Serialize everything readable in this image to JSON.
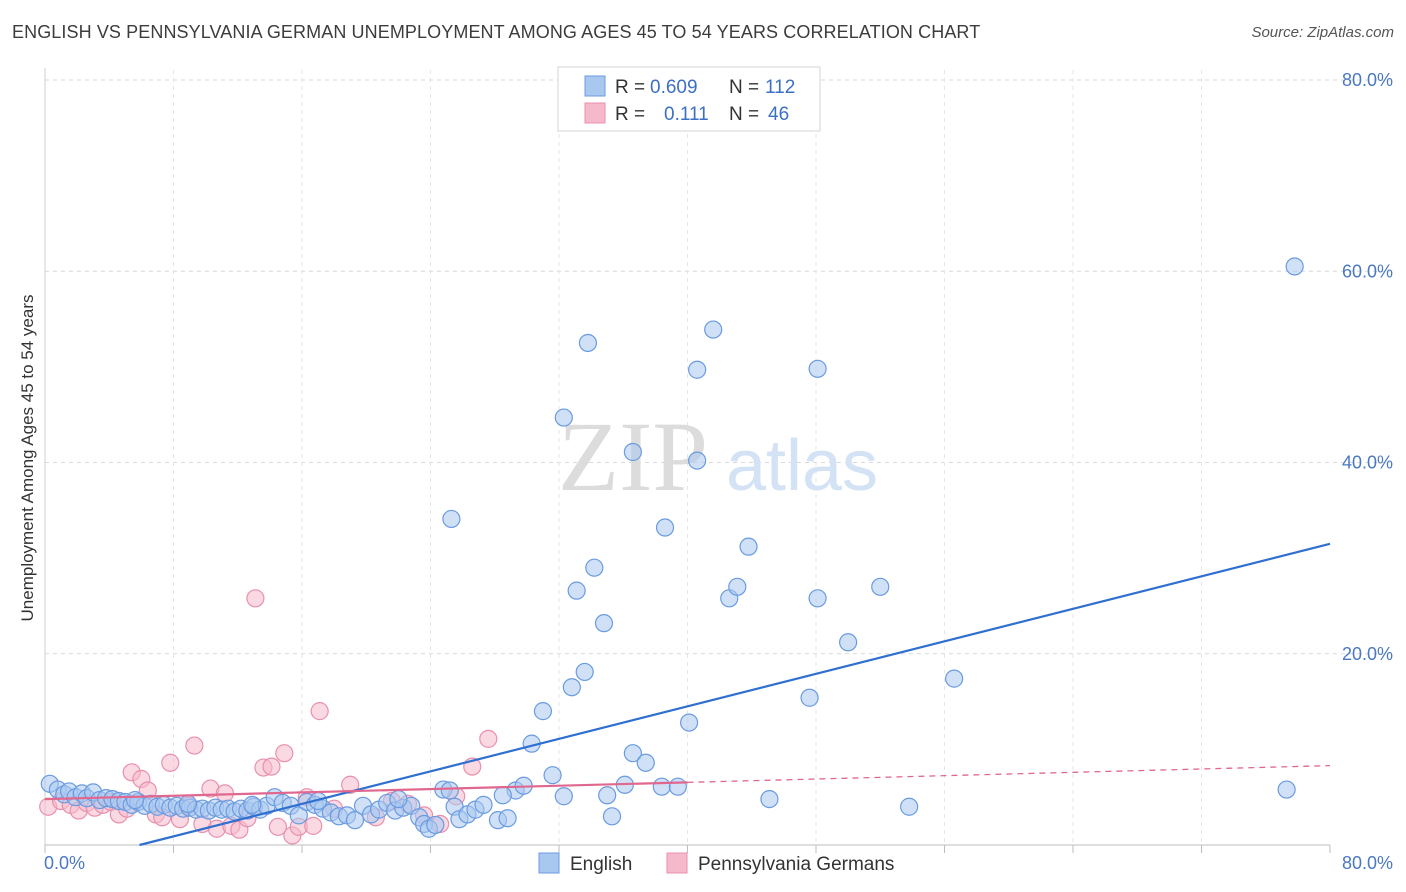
{
  "title": "ENGLISH VS PENNSYLVANIA GERMAN UNEMPLOYMENT AMONG AGES 45 TO 54 YEARS CORRELATION CHART",
  "source": "Source: ZipAtlas.com",
  "watermark": {
    "zip": "ZIP",
    "atlas": "atlas"
  },
  "colors": {
    "english_fill": "#a9c8f0",
    "english_stroke": "#6a9be0",
    "english_line": "#2f6fd0",
    "pa_fill": "#f6b9cc",
    "pa_stroke": "#e890ad",
    "pa_line": "#e0688f",
    "axis_label": "#4a78c2",
    "grid": "#d9d9d9"
  },
  "legend_top": {
    "rows": [
      {
        "r_label": "R =",
        "r_value": "0.609",
        "n_label": "N =",
        "n_value": "112"
      },
      {
        "r_label": "R =",
        "r_value": "0.111",
        "n_label": "N =",
        "n_value": "46"
      }
    ]
  },
  "legend_bottom": {
    "items": [
      "English",
      "Pennsylvania Germans"
    ]
  },
  "chart_data": {
    "type": "scatter",
    "title": "ENGLISH VS PENNSYLVANIA GERMAN UNEMPLOYMENT AMONG AGES 45 TO 54 YEARS CORRELATION CHART",
    "xlabel": "",
    "ylabel": "Unemployment Among Ages 45 to 54 years",
    "xlim": [
      0,
      80
    ],
    "ylim": [
      0,
      80
    ],
    "x_tick_labels": [
      "0.0%",
      "80.0%"
    ],
    "y_ticks": [
      20,
      40,
      60,
      80
    ],
    "y_tick_labels": [
      "20.0%",
      "40.0%",
      "60.0%",
      "80.0%"
    ],
    "grid": true,
    "series": [
      {
        "name": "English",
        "r": 0.609,
        "n": 112,
        "trend": {
          "x0": 0,
          "y0": -2.5,
          "x1": 80,
          "y1": 31.5,
          "dash_from": null
        },
        "points": [
          [
            0.3,
            6.4
          ],
          [
            0.8,
            5.8
          ],
          [
            1.2,
            5.3
          ],
          [
            1.5,
            5.6
          ],
          [
            1.9,
            5.0
          ],
          [
            2.3,
            5.4
          ],
          [
            2.6,
            4.9
          ],
          [
            3.0,
            5.5
          ],
          [
            3.4,
            4.7
          ],
          [
            3.8,
            4.9
          ],
          [
            4.2,
            4.8
          ],
          [
            4.6,
            4.6
          ],
          [
            5.0,
            4.5
          ],
          [
            5.4,
            4.2
          ],
          [
            5.8,
            4.5
          ],
          [
            6.2,
            4.1
          ],
          [
            6.6,
            4.3
          ],
          [
            7.0,
            4.0
          ],
          [
            7.4,
            4.2
          ],
          [
            7.8,
            3.9
          ],
          [
            8.2,
            4.1
          ],
          [
            8.6,
            3.8
          ],
          [
            9.0,
            3.9
          ],
          [
            9.4,
            3.7
          ],
          [
            9.8,
            3.8
          ],
          [
            10.2,
            3.6
          ],
          [
            10.6,
            3.9
          ],
          [
            11.0,
            3.7
          ],
          [
            11.4,
            3.8
          ],
          [
            11.8,
            3.5
          ],
          [
            12.2,
            3.8
          ],
          [
            12.6,
            3.6
          ],
          [
            13.0,
            4.0
          ],
          [
            13.4,
            3.7
          ],
          [
            13.8,
            4.1
          ],
          [
            14.3,
            5.0
          ],
          [
            14.8,
            4.4
          ],
          [
            15.3,
            4.1
          ],
          [
            15.8,
            3.1
          ],
          [
            16.3,
            4.5
          ],
          [
            16.8,
            4.2
          ],
          [
            17.3,
            3.8
          ],
          [
            17.8,
            3.4
          ],
          [
            18.3,
            3.0
          ],
          [
            18.8,
            3.1
          ],
          [
            19.3,
            2.6
          ],
          [
            19.8,
            4.1
          ],
          [
            20.3,
            3.2
          ],
          [
            20.8,
            3.7
          ],
          [
            21.3,
            4.4
          ],
          [
            21.8,
            3.6
          ],
          [
            22.3,
            3.9
          ],
          [
            22.8,
            4.1
          ],
          [
            23.3,
            2.9
          ],
          [
            23.6,
            2.2
          ],
          [
            23.9,
            1.7
          ],
          [
            24.3,
            2.1
          ],
          [
            24.8,
            5.8
          ],
          [
            25.2,
            5.7
          ],
          [
            25.5,
            4.0
          ],
          [
            25.8,
            2.7
          ],
          [
            26.3,
            3.2
          ],
          [
            26.8,
            3.7
          ],
          [
            27.3,
            4.2
          ],
          [
            28.2,
            2.6
          ],
          [
            28.8,
            2.8
          ],
          [
            29.3,
            5.7
          ],
          [
            29.8,
            6.2
          ],
          [
            30.3,
            10.6
          ],
          [
            31.0,
            14.0
          ],
          [
            32.3,
            5.1
          ],
          [
            32.8,
            16.5
          ],
          [
            33.6,
            18.1
          ],
          [
            33.1,
            26.6
          ],
          [
            34.2,
            29.0
          ],
          [
            34.8,
            23.2
          ],
          [
            35.0,
            5.2
          ],
          [
            35.3,
            3.0
          ],
          [
            36.6,
            9.6
          ],
          [
            37.4,
            8.6
          ],
          [
            38.4,
            6.1
          ],
          [
            39.4,
            6.1
          ],
          [
            40.1,
            12.8
          ],
          [
            40.6,
            40.2
          ],
          [
            42.6,
            25.8
          ],
          [
            43.1,
            27.0
          ],
          [
            43.8,
            31.2
          ],
          [
            45.1,
            4.8
          ],
          [
            47.6,
            15.4
          ],
          [
            48.1,
            25.8
          ],
          [
            50.0,
            21.2
          ],
          [
            53.8,
            4.0
          ],
          [
            25.3,
            34.1
          ],
          [
            32.3,
            44.7
          ],
          [
            33.8,
            52.5
          ],
          [
            36.6,
            41.1
          ],
          [
            38.6,
            33.2
          ],
          [
            40.6,
            49.7
          ],
          [
            41.6,
            53.9
          ],
          [
            48.1,
            49.8
          ],
          [
            52.0,
            27.0
          ],
          [
            56.6,
            17.4
          ],
          [
            77.3,
            5.8
          ],
          [
            77.8,
            60.5
          ],
          [
            5.6,
            4.7
          ],
          [
            8.9,
            4.3
          ],
          [
            12.9,
            4.2
          ],
          [
            17.0,
            4.6
          ],
          [
            22.0,
            4.8
          ],
          [
            28.5,
            5.2
          ],
          [
            31.6,
            7.3
          ],
          [
            36.1,
            6.3
          ]
        ]
      },
      {
        "name": "Pennsylvania Germans",
        "r": 0.111,
        "n": 46,
        "trend": {
          "x0": 0,
          "y0": 4.8,
          "x1": 80,
          "y1": 8.3,
          "dash_from": 40
        },
        "points": [
          [
            0.2,
            4.0
          ],
          [
            1.0,
            4.6
          ],
          [
            1.6,
            4.2
          ],
          [
            2.1,
            3.6
          ],
          [
            2.6,
            4.4
          ],
          [
            3.1,
            3.9
          ],
          [
            3.6,
            4.2
          ],
          [
            4.1,
            4.5
          ],
          [
            4.6,
            3.2
          ],
          [
            5.1,
            3.8
          ],
          [
            5.4,
            7.6
          ],
          [
            6.0,
            6.9
          ],
          [
            6.4,
            5.7
          ],
          [
            6.9,
            3.2
          ],
          [
            7.3,
            2.9
          ],
          [
            7.8,
            8.6
          ],
          [
            8.4,
            2.7
          ],
          [
            8.9,
            4.1
          ],
          [
            9.3,
            10.4
          ],
          [
            9.8,
            2.2
          ],
          [
            10.3,
            5.9
          ],
          [
            10.7,
            1.7
          ],
          [
            11.2,
            5.4
          ],
          [
            11.6,
            2.0
          ],
          [
            12.1,
            1.6
          ],
          [
            12.6,
            2.8
          ],
          [
            13.1,
            25.8
          ],
          [
            13.6,
            8.1
          ],
          [
            14.1,
            8.2
          ],
          [
            14.5,
            1.9
          ],
          [
            14.9,
            9.6
          ],
          [
            15.4,
            1.0
          ],
          [
            15.8,
            1.9
          ],
          [
            16.3,
            5.0
          ],
          [
            16.7,
            2.0
          ],
          [
            17.1,
            14.0
          ],
          [
            18.0,
            3.8
          ],
          [
            19.0,
            6.3
          ],
          [
            20.6,
            2.9
          ],
          [
            21.6,
            4.6
          ],
          [
            22.6,
            4.3
          ],
          [
            23.6,
            3.1
          ],
          [
            24.6,
            2.2
          ],
          [
            25.6,
            5.1
          ],
          [
            26.6,
            8.2
          ],
          [
            27.6,
            11.1
          ]
        ]
      }
    ]
  }
}
